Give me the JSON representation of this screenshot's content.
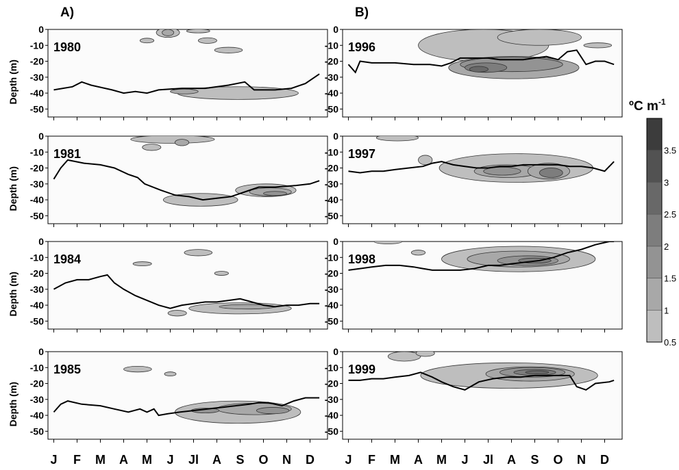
{
  "panel_labels": [
    "A)",
    "B)"
  ],
  "ylabel": "Depth (m)",
  "months": [
    "J",
    "F",
    "M",
    "A",
    "M",
    "J",
    "Jl",
    "A",
    "S",
    "O",
    "N",
    "D"
  ],
  "legend": {
    "title": "ºC m",
    "title_sup": "-1",
    "levels": [
      0.5,
      1,
      1.5,
      2,
      2.5,
      3,
      3.5
    ],
    "colors": [
      "#d3d3d3",
      "#bebebe",
      "#a8a8a8",
      "#939393",
      "#7d7d7d",
      "#686868",
      "#525252",
      "#3c3c3c"
    ]
  },
  "chart_data": {
    "type": "heatmap",
    "description_axes": {
      "x": "month (Jan to Dec)",
      "y": "depth (m)",
      "ylim": [
        -55,
        0
      ],
      "yticks": [
        0,
        -10,
        -20,
        -30,
        -40,
        -50
      ]
    },
    "panels": [
      {
        "column": "A)",
        "year": "1980",
        "thermocline_depth": [
          [
            1,
            -38
          ],
          [
            1.8,
            -36
          ],
          [
            2.2,
            -33
          ],
          [
            2.6,
            -35
          ],
          [
            3.5,
            -38
          ],
          [
            4,
            -40
          ],
          [
            4.5,
            -39
          ],
          [
            5,
            -40
          ],
          [
            5.5,
            -38
          ],
          [
            6.5,
            -37
          ],
          [
            7.5,
            -37
          ],
          [
            8.5,
            -35
          ],
          [
            9.2,
            -33
          ],
          [
            9.6,
            -38
          ],
          [
            10.5,
            -38
          ],
          [
            11.2,
            -37
          ],
          [
            11.8,
            -34
          ],
          [
            12.4,
            -28
          ]
        ],
        "gradient_regions": [
          {
            "level": 1,
            "cx": 5.9,
            "cy": -2,
            "rx": 0.5,
            "ry": 3
          },
          {
            "level": 1.5,
            "cx": 5.9,
            "cy": -2,
            "rx": 0.25,
            "ry": 2
          },
          {
            "level": 1,
            "cx": 5.0,
            "cy": -7,
            "rx": 0.3,
            "ry": 1.5
          },
          {
            "level": 1,
            "cx": 7.6,
            "cy": -7,
            "rx": 0.4,
            "ry": 1.8
          },
          {
            "level": 1,
            "cx": 8.5,
            "cy": -13,
            "rx": 0.6,
            "ry": 1.8
          },
          {
            "level": 1,
            "cx": 7.2,
            "cy": -1,
            "rx": 0.5,
            "ry": 1.2
          },
          {
            "level": 1,
            "cx": 8.9,
            "cy": -40,
            "rx": 2.6,
            "ry": 4
          },
          {
            "level": 1.5,
            "cx": 6.6,
            "cy": -39,
            "rx": 0.6,
            "ry": 1.5
          }
        ]
      },
      {
        "column": "A)",
        "year": "1981",
        "thermocline_depth": [
          [
            1,
            -27
          ],
          [
            1.3,
            -20
          ],
          [
            1.6,
            -15
          ],
          [
            2.3,
            -17
          ],
          [
            3,
            -18
          ],
          [
            3.6,
            -20
          ],
          [
            4.2,
            -24
          ],
          [
            4.6,
            -26
          ],
          [
            4.9,
            -30
          ],
          [
            5.6,
            -34
          ],
          [
            6.2,
            -37
          ],
          [
            6.8,
            -38
          ],
          [
            7.4,
            -40
          ],
          [
            8,
            -39
          ],
          [
            8.6,
            -38
          ],
          [
            9.2,
            -35
          ],
          [
            9.8,
            -32
          ],
          [
            10.5,
            -32
          ],
          [
            11.4,
            -31
          ],
          [
            12,
            -30
          ],
          [
            12.4,
            -28
          ]
        ],
        "gradient_regions": [
          {
            "level": 1,
            "cx": 6.1,
            "cy": -2,
            "rx": 1.8,
            "ry": 2.5
          },
          {
            "level": 1.5,
            "cx": 6.5,
            "cy": -4,
            "rx": 0.3,
            "ry": 2
          },
          {
            "level": 1,
            "cx": 5.2,
            "cy": -7,
            "rx": 0.4,
            "ry": 2
          },
          {
            "level": 1,
            "cx": 7.3,
            "cy": -40,
            "rx": 1.6,
            "ry": 4
          },
          {
            "level": 1,
            "cx": 10.1,
            "cy": -34,
            "rx": 1.3,
            "ry": 4
          },
          {
            "level": 1.5,
            "cx": 10.3,
            "cy": -35,
            "rx": 0.9,
            "ry": 2.5
          },
          {
            "level": 2,
            "cx": 10.5,
            "cy": -36,
            "rx": 0.5,
            "ry": 1.3
          }
        ]
      },
      {
        "column": "A)",
        "year": "1984",
        "thermocline_depth": [
          [
            1,
            -30
          ],
          [
            1.5,
            -26
          ],
          [
            2,
            -24
          ],
          [
            2.5,
            -24
          ],
          [
            3,
            -22
          ],
          [
            3.3,
            -21
          ],
          [
            3.6,
            -26
          ],
          [
            4,
            -30
          ],
          [
            4.5,
            -34
          ],
          [
            5,
            -37
          ],
          [
            5.5,
            -40
          ],
          [
            6,
            -42
          ],
          [
            6.5,
            -40
          ],
          [
            7,
            -39
          ],
          [
            7.5,
            -38
          ],
          [
            8,
            -38
          ],
          [
            8.5,
            -37
          ],
          [
            9,
            -36
          ],
          [
            9.5,
            -38
          ],
          [
            10,
            -40
          ],
          [
            10.5,
            -41
          ],
          [
            11,
            -40
          ],
          [
            11.5,
            -40
          ],
          [
            12,
            -39
          ],
          [
            12.4,
            -39
          ]
        ],
        "gradient_regions": [
          {
            "level": 1,
            "cx": 7.2,
            "cy": -7,
            "rx": 0.6,
            "ry": 2
          },
          {
            "level": 1,
            "cx": 4.8,
            "cy": -14,
            "rx": 0.4,
            "ry": 1.3
          },
          {
            "level": 1,
            "cx": 8.2,
            "cy": -20,
            "rx": 0.3,
            "ry": 1.3
          },
          {
            "level": 1,
            "cx": 6.3,
            "cy": -45,
            "rx": 0.4,
            "ry": 1.8
          },
          {
            "level": 1,
            "cx": 9,
            "cy": -42,
            "rx": 2.2,
            "ry": 3.5
          },
          {
            "level": 1.5,
            "cx": 9.3,
            "cy": -41,
            "rx": 1.2,
            "ry": 1.4
          }
        ]
      },
      {
        "column": "A)",
        "year": "1985",
        "thermocline_depth": [
          [
            1,
            -38
          ],
          [
            1.3,
            -33
          ],
          [
            1.6,
            -31
          ],
          [
            2.2,
            -33
          ],
          [
            3,
            -34
          ],
          [
            3.6,
            -36
          ],
          [
            4.2,
            -38
          ],
          [
            4.7,
            -36
          ],
          [
            5,
            -38
          ],
          [
            5.3,
            -36
          ],
          [
            5.5,
            -40
          ],
          [
            5.9,
            -39
          ],
          [
            6.4,
            -38
          ],
          [
            7,
            -37
          ],
          [
            7.6,
            -36
          ],
          [
            8.2,
            -35
          ],
          [
            8.8,
            -34
          ],
          [
            9.4,
            -33
          ],
          [
            9.8,
            -32
          ],
          [
            10.2,
            -32
          ],
          [
            10.8,
            -34
          ],
          [
            11.3,
            -31
          ],
          [
            11.8,
            -29
          ],
          [
            12.4,
            -29
          ]
        ],
        "gradient_regions": [
          {
            "level": 1,
            "cx": 4.6,
            "cy": -11,
            "rx": 0.6,
            "ry": 1.8
          },
          {
            "level": 1,
            "cx": 6.0,
            "cy": -14,
            "rx": 0.25,
            "ry": 1.3
          },
          {
            "level": 1,
            "cx": 8.9,
            "cy": -38,
            "rx": 2.7,
            "ry": 7
          },
          {
            "level": 1.5,
            "cx": 9.6,
            "cy": -36,
            "rx": 1.6,
            "ry": 3.6
          },
          {
            "level": 2,
            "cx": 10.4,
            "cy": -37,
            "rx": 0.7,
            "ry": 2
          },
          {
            "level": 2,
            "cx": 7.5,
            "cy": -37,
            "rx": 0.6,
            "ry": 1.5
          }
        ]
      },
      {
        "column": "B)",
        "year": "1996",
        "thermocline_depth": [
          [
            1,
            -22
          ],
          [
            1.3,
            -27
          ],
          [
            1.5,
            -20
          ],
          [
            2,
            -21
          ],
          [
            3,
            -21
          ],
          [
            3.8,
            -22
          ],
          [
            4.5,
            -22
          ],
          [
            5,
            -23
          ],
          [
            5.4,
            -21
          ],
          [
            5.8,
            -18
          ],
          [
            6.4,
            -18
          ],
          [
            7,
            -18
          ],
          [
            7.5,
            -19
          ],
          [
            8,
            -19
          ],
          [
            8.5,
            -19
          ],
          [
            9,
            -18
          ],
          [
            9.5,
            -17
          ],
          [
            10,
            -19
          ],
          [
            10.4,
            -14
          ],
          [
            10.8,
            -13
          ],
          [
            11.2,
            -22
          ],
          [
            11.6,
            -20
          ],
          [
            12,
            -20
          ],
          [
            12.4,
            -22
          ]
        ],
        "gradient_regions": [
          {
            "level": 1,
            "cx": 6.8,
            "cy": -10,
            "rx": 2.8,
            "ry": 10
          },
          {
            "level": 1,
            "cx": 9.2,
            "cy": -5,
            "rx": 1.8,
            "ry": 5
          },
          {
            "level": 1,
            "cx": 11.7,
            "cy": -10,
            "rx": 0.6,
            "ry": 1.6
          },
          {
            "level": 1.5,
            "cx": 8.1,
            "cy": -24,
            "rx": 2.8,
            "ry": 7
          },
          {
            "level": 2,
            "cx": 8,
            "cy": -22,
            "rx": 2.2,
            "ry": 4.5
          },
          {
            "level": 2.5,
            "cx": 6.9,
            "cy": -24,
            "rx": 0.9,
            "ry": 3
          },
          {
            "level": 3,
            "cx": 6.6,
            "cy": -25,
            "rx": 0.4,
            "ry": 1.8
          }
        ]
      },
      {
        "column": "B)",
        "year": "1997",
        "thermocline_depth": [
          [
            1,
            -22
          ],
          [
            1.5,
            -23
          ],
          [
            2,
            -22
          ],
          [
            2.5,
            -22
          ],
          [
            3,
            -21
          ],
          [
            3.6,
            -20
          ],
          [
            4.2,
            -19
          ],
          [
            4.6,
            -17
          ],
          [
            5,
            -16
          ],
          [
            5.5,
            -18
          ],
          [
            6,
            -19
          ],
          [
            6.5,
            -20
          ],
          [
            7,
            -20
          ],
          [
            7.5,
            -19
          ],
          [
            8,
            -19
          ],
          [
            8.5,
            -18
          ],
          [
            9,
            -18
          ],
          [
            9.5,
            -18
          ],
          [
            10,
            -18
          ],
          [
            10.5,
            -19
          ],
          [
            11,
            -19
          ],
          [
            11.5,
            -20
          ],
          [
            12,
            -22
          ],
          [
            12.4,
            -16
          ]
        ],
        "gradient_regions": [
          {
            "level": 1,
            "cx": 3.1,
            "cy": -1,
            "rx": 0.9,
            "ry": 2
          },
          {
            "level": 1,
            "cx": 4.3,
            "cy": -15,
            "rx": 0.3,
            "ry": 3
          },
          {
            "level": 1,
            "cx": 8.2,
            "cy": -20,
            "rx": 3.3,
            "ry": 9
          },
          {
            "level": 1.5,
            "cx": 7.8,
            "cy": -22,
            "rx": 1.4,
            "ry": 4
          },
          {
            "level": 1.5,
            "cx": 9.6,
            "cy": -22,
            "rx": 0.9,
            "ry": 5
          },
          {
            "level": 2,
            "cx": 7.6,
            "cy": -22,
            "rx": 0.8,
            "ry": 2.5
          },
          {
            "level": 2.5,
            "cx": 9.7,
            "cy": -23,
            "rx": 0.5,
            "ry": 3
          }
        ]
      },
      {
        "column": "B)",
        "year": "1998",
        "thermocline_depth": [
          [
            1,
            -18
          ],
          [
            1.5,
            -17
          ],
          [
            2,
            -16
          ],
          [
            2.6,
            -15
          ],
          [
            3.2,
            -15
          ],
          [
            3.8,
            -16
          ],
          [
            4.2,
            -17
          ],
          [
            4.6,
            -18
          ],
          [
            5.2,
            -18
          ],
          [
            5.8,
            -18
          ],
          [
            6.4,
            -17
          ],
          [
            7,
            -15
          ],
          [
            7.5,
            -15
          ],
          [
            8,
            -14
          ],
          [
            8.6,
            -13
          ],
          [
            9.2,
            -12
          ],
          [
            9.8,
            -10
          ],
          [
            10.4,
            -7
          ],
          [
            11,
            -5
          ],
          [
            11.6,
            -2
          ],
          [
            12.2,
            0
          ],
          [
            12.4,
            0
          ]
        ],
        "gradient_regions": [
          {
            "level": 1,
            "cx": 8.3,
            "cy": -11,
            "rx": 3.3,
            "ry": 8
          },
          {
            "level": 1.5,
            "cx": 8.3,
            "cy": -11,
            "rx": 2.2,
            "ry": 5
          },
          {
            "level": 2,
            "cx": 8.7,
            "cy": -12,
            "rx": 1.3,
            "ry": 3
          },
          {
            "level": 2.5,
            "cx": 9,
            "cy": -12,
            "rx": 0.7,
            "ry": 1.6
          },
          {
            "level": 1,
            "cx": 4.0,
            "cy": -7,
            "rx": 0.3,
            "ry": 1.6
          },
          {
            "level": 1,
            "cx": 2.7,
            "cy": 0,
            "rx": 0.6,
            "ry": 1.5
          }
        ]
      },
      {
        "column": "B)",
        "year": "1999",
        "thermocline_depth": [
          [
            1,
            -18
          ],
          [
            1.5,
            -18
          ],
          [
            2,
            -17
          ],
          [
            2.5,
            -17
          ],
          [
            3,
            -16
          ],
          [
            3.6,
            -15
          ],
          [
            4.1,
            -13
          ],
          [
            4.6,
            -16
          ],
          [
            5,
            -19
          ],
          [
            5.5,
            -22
          ],
          [
            6,
            -24
          ],
          [
            6.6,
            -19
          ],
          [
            7.2,
            -17
          ],
          [
            7.8,
            -16
          ],
          [
            8.4,
            -16
          ],
          [
            9,
            -15
          ],
          [
            9.6,
            -15
          ],
          [
            10.2,
            -15
          ],
          [
            10.5,
            -15
          ],
          [
            10.8,
            -22
          ],
          [
            11.2,
            -24
          ],
          [
            11.6,
            -20
          ],
          [
            12.2,
            -19
          ],
          [
            12.4,
            -18
          ]
        ],
        "gradient_regions": [
          {
            "level": 1,
            "cx": 7.9,
            "cy": -15,
            "rx": 3.8,
            "ry": 8
          },
          {
            "level": 1.5,
            "cx": 8.8,
            "cy": -14,
            "rx": 1.9,
            "ry": 4.5
          },
          {
            "level": 2,
            "cx": 8.9,
            "cy": -13,
            "rx": 1.4,
            "ry": 3
          },
          {
            "level": 2.5,
            "cx": 9,
            "cy": -13,
            "rx": 0.9,
            "ry": 1.8
          },
          {
            "level": 3,
            "cx": 9.1,
            "cy": -13,
            "rx": 0.5,
            "ry": 1
          },
          {
            "level": 1,
            "cx": 3.4,
            "cy": -3,
            "rx": 0.7,
            "ry": 3
          },
          {
            "level": 1,
            "cx": 4.3,
            "cy": -1,
            "rx": 0.4,
            "ry": 2
          }
        ]
      }
    ]
  }
}
